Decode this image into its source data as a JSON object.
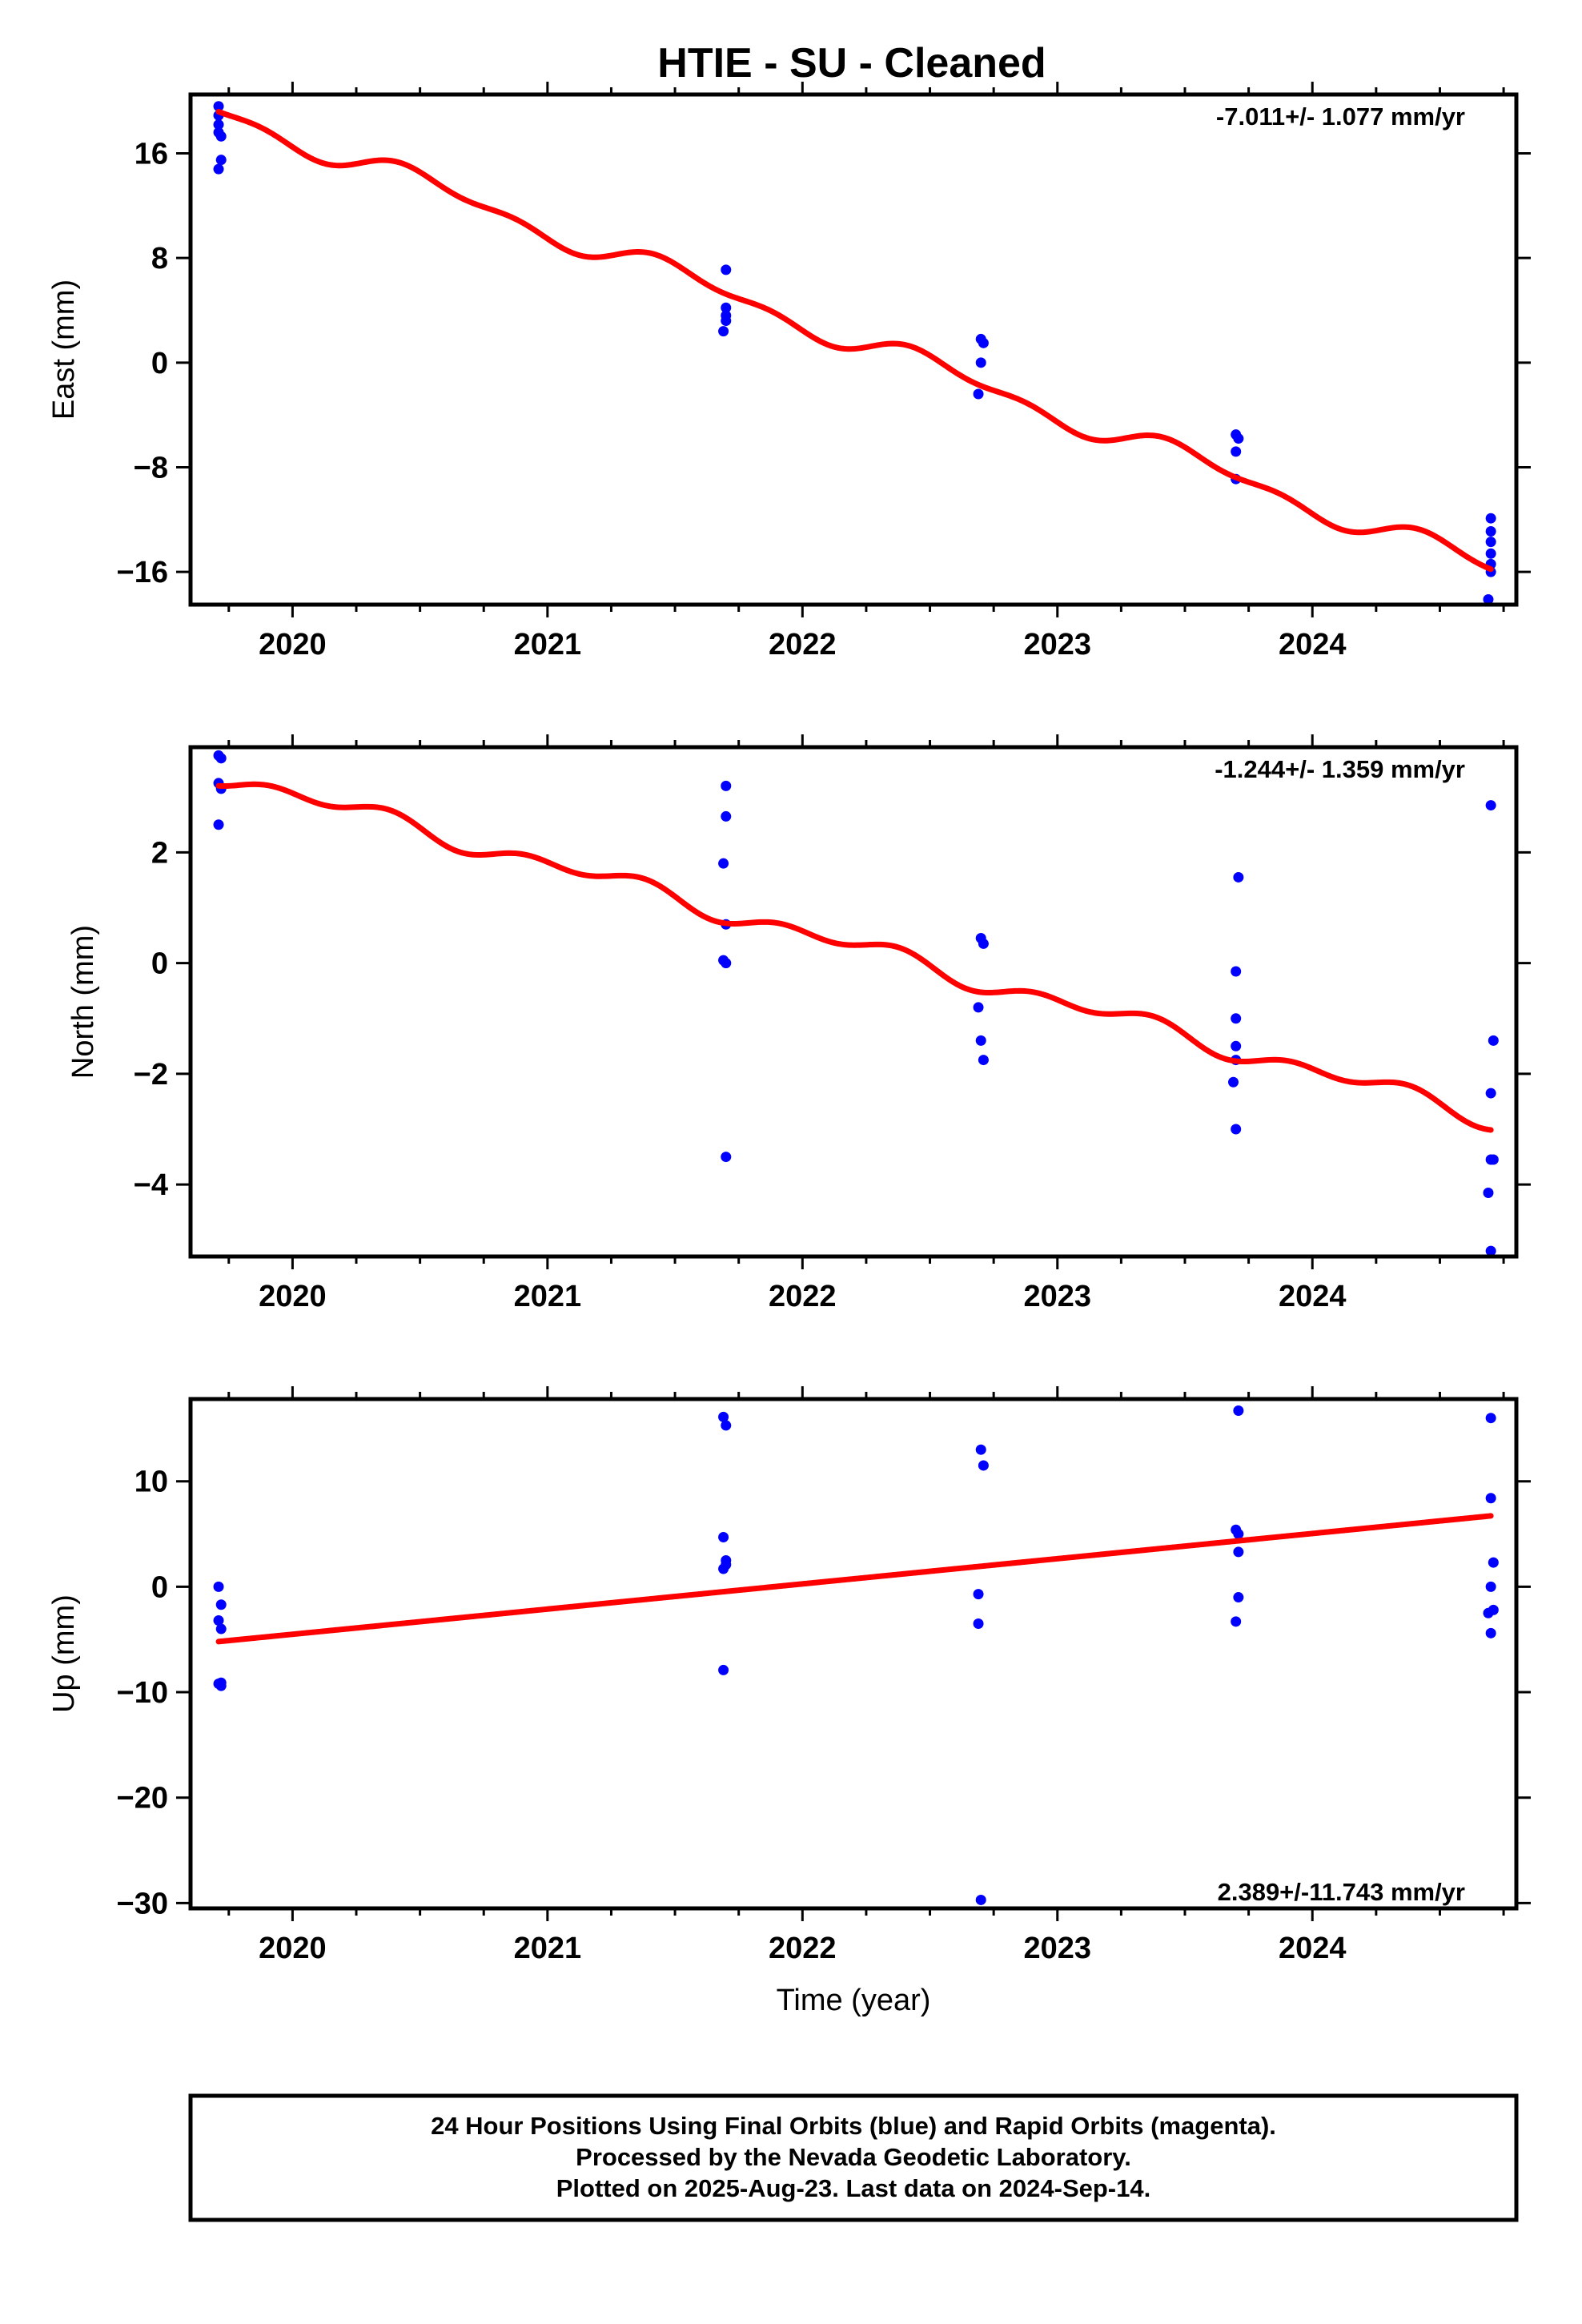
{
  "title": "HTIE  - SU - Cleaned",
  "x_axis_label": "Time (year)",
  "colors": {
    "points": "#0000ff",
    "trend": "#ff0000",
    "frame": "#000000"
  },
  "footer": {
    "line1": "24 Hour Positions Using Final Orbits (blue) and Rapid Orbits (magenta).",
    "line2": "Processed by the Nevada Geodetic Laboratory.",
    "line3": "Plotted on 2025-Aug-23. Last data on 2024-Sep-14."
  },
  "chart_data": [
    {
      "type": "scatter",
      "panel": "east",
      "ylabel": "East (mm)",
      "rate_label": "-7.011+/- 1.077 mm/yr",
      "rate_position": "top-right",
      "xlim": [
        2019.6,
        2024.8
      ],
      "ylim": [
        -18.5,
        20.5
      ],
      "xticks": [
        2020,
        2021,
        2022,
        2023,
        2024
      ],
      "xtick_labels": [
        "2020",
        "2021",
        "2022",
        "2023",
        "2024"
      ],
      "yticks": [
        16,
        8,
        0,
        -8,
        -16
      ],
      "ytick_labels": [
        "16",
        "8",
        "0",
        "−8",
        "−16"
      ],
      "points": [
        [
          2019.71,
          19.6
        ],
        [
          2019.71,
          18.9
        ],
        [
          2019.71,
          18.2
        ],
        [
          2019.71,
          17.6
        ],
        [
          2019.72,
          17.3
        ],
        [
          2019.72,
          15.5
        ],
        [
          2019.71,
          14.8
        ],
        [
          2021.7,
          7.1
        ],
        [
          2021.7,
          4.2
        ],
        [
          2021.7,
          3.6
        ],
        [
          2021.7,
          3.2
        ],
        [
          2021.69,
          2.4
        ],
        [
          2022.7,
          1.8
        ],
        [
          2022.71,
          1.5
        ],
        [
          2022.7,
          0.0
        ],
        [
          2022.69,
          -2.4
        ],
        [
          2023.7,
          -5.5
        ],
        [
          2023.71,
          -5.8
        ],
        [
          2023.7,
          -6.8
        ],
        [
          2023.7,
          -8.9
        ],
        [
          2024.7,
          -11.9
        ],
        [
          2024.7,
          -12.9
        ],
        [
          2024.7,
          -13.7
        ],
        [
          2024.7,
          -14.6
        ],
        [
          2024.7,
          -15.4
        ],
        [
          2024.7,
          -16.0
        ],
        [
          2024.69,
          -18.1
        ]
      ],
      "trend": {
        "rate": -7.011,
        "t0": 2019.71,
        "y0": 19.2,
        "seasonal": [
          {
            "period": 1.0,
            "amplitude": 0.8,
            "phase": 0.27
          },
          {
            "period": 0.5,
            "amplitude": 0.45,
            "phase": 0.27
          }
        ],
        "t_start": 2019.71,
        "t_end": 2024.7
      }
    },
    {
      "type": "scatter",
      "panel": "north",
      "ylabel": "North (mm)",
      "rate_label": "-1.244+/- 1.359 mm/yr",
      "rate_position": "top-right",
      "xlim": [
        2019.6,
        2024.8
      ],
      "ylim": [
        -5.3,
        3.9
      ],
      "xticks": [
        2020,
        2021,
        2022,
        2023,
        2024
      ],
      "xtick_labels": [
        "2020",
        "2021",
        "2022",
        "2023",
        "2024"
      ],
      "yticks": [
        2,
        0,
        -2,
        -4
      ],
      "ytick_labels": [
        "2",
        "0",
        "−2",
        "−4"
      ],
      "points": [
        [
          2019.71,
          3.75
        ],
        [
          2019.72,
          3.7
        ],
        [
          2019.71,
          3.25
        ],
        [
          2019.72,
          3.15
        ],
        [
          2019.71,
          2.5
        ],
        [
          2021.7,
          3.2
        ],
        [
          2021.7,
          2.65
        ],
        [
          2021.69,
          1.8
        ],
        [
          2021.7,
          0.7
        ],
        [
          2021.69,
          0.05
        ],
        [
          2021.7,
          0.0
        ],
        [
          2021.7,
          -3.5
        ],
        [
          2022.7,
          0.45
        ],
        [
          2022.71,
          0.35
        ],
        [
          2022.69,
          -0.8
        ],
        [
          2022.7,
          -1.4
        ],
        [
          2022.71,
          -1.75
        ],
        [
          2023.71,
          1.55
        ],
        [
          2023.7,
          -0.15
        ],
        [
          2023.7,
          -1.0
        ],
        [
          2023.7,
          -1.5
        ],
        [
          2023.7,
          -1.75
        ],
        [
          2023.69,
          -2.15
        ],
        [
          2023.7,
          -3.0
        ],
        [
          2024.7,
          2.85
        ],
        [
          2024.71,
          -1.4
        ],
        [
          2024.7,
          -2.35
        ],
        [
          2024.7,
          -3.55
        ],
        [
          2024.71,
          -3.55
        ],
        [
          2024.69,
          -4.15
        ],
        [
          2024.7,
          -5.2
        ]
      ],
      "trend": {
        "rate": -1.244,
        "t0": 2019.71,
        "y0": 3.4,
        "seasonal": [
          {
            "period": 1.0,
            "amplitude": 0.12,
            "phase": 0.0
          },
          {
            "period": 0.5,
            "amplitude": 0.12,
            "phase": 0.27
          }
        ],
        "t_start": 2019.71,
        "t_end": 2024.7
      }
    },
    {
      "type": "scatter",
      "panel": "up",
      "ylabel": "Up (mm)",
      "rate_label": "2.389+/-11.743 mm/yr",
      "rate_position": "bottom-right",
      "xlim": [
        2019.6,
        2024.8
      ],
      "ylim": [
        -30.5,
        17.8
      ],
      "xticks": [
        2020,
        2021,
        2022,
        2023,
        2024
      ],
      "xtick_labels": [
        "2020",
        "2021",
        "2022",
        "2023",
        "2024"
      ],
      "yticks": [
        10,
        0,
        -10,
        -20,
        -30
      ],
      "ytick_labels": [
        "10",
        "0",
        "−10",
        "−20",
        "−30"
      ],
      "points": [
        [
          2019.71,
          0.0
        ],
        [
          2019.72,
          -1.7
        ],
        [
          2019.71,
          -3.2
        ],
        [
          2019.72,
          -4.0
        ],
        [
          2019.71,
          -9.2
        ],
        [
          2019.72,
          -9.4
        ],
        [
          2019.72,
          -9.1
        ],
        [
          2021.69,
          16.1
        ],
        [
          2021.7,
          15.3
        ],
        [
          2021.69,
          4.7
        ],
        [
          2021.7,
          2.5
        ],
        [
          2021.7,
          2.1
        ],
        [
          2021.69,
          1.7
        ],
        [
          2021.69,
          -7.9
        ],
        [
          2022.7,
          13.0
        ],
        [
          2022.71,
          11.5
        ],
        [
          2022.69,
          -0.7
        ],
        [
          2022.69,
          -3.5
        ],
        [
          2022.7,
          -29.7
        ],
        [
          2023.71,
          16.7
        ],
        [
          2023.7,
          5.4
        ],
        [
          2023.71,
          5.0
        ],
        [
          2023.71,
          3.3
        ],
        [
          2023.71,
          -1.0
        ],
        [
          2023.7,
          -3.3
        ],
        [
          2024.7,
          16.0
        ],
        [
          2024.7,
          8.4
        ],
        [
          2024.71,
          2.3
        ],
        [
          2024.7,
          0.0
        ],
        [
          2024.71,
          -2.2
        ],
        [
          2024.69,
          -2.5
        ],
        [
          2024.7,
          -4.4
        ]
      ],
      "trend": {
        "rate": 2.389,
        "t0": 2019.71,
        "y0": -5.2,
        "seasonal": [],
        "t_start": 2019.71,
        "t_end": 2024.7
      }
    }
  ]
}
